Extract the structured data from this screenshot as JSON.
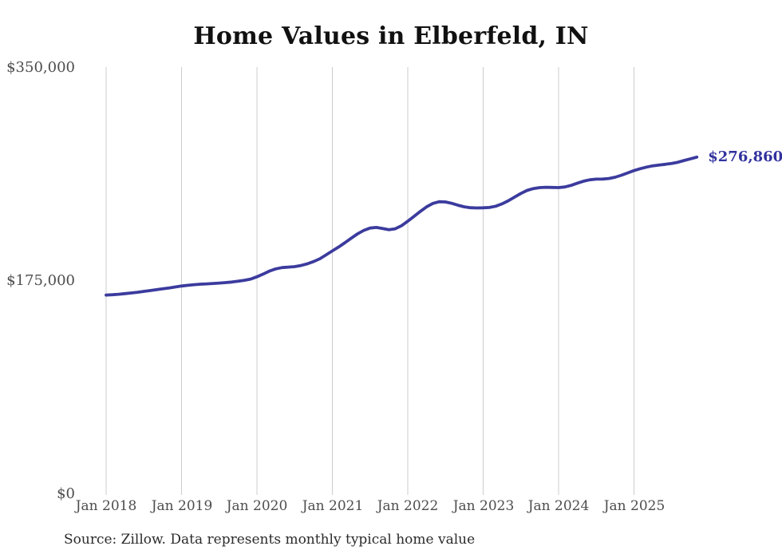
{
  "title": "Home Values in Elberfeld, IN",
  "end_label": "$276,860",
  "source_note": "Source: Zillow. Data represents monthly typical home value",
  "colors": {
    "line": "#3b3b9e",
    "end_label": "#32329e",
    "gridline": "#cccccc",
    "axis_text": "#4d4d4d",
    "title_text": "#111111",
    "source_text": "#2b2b2b",
    "background": "#ffffff"
  },
  "y_axis": {
    "tick_labels": [
      "$0",
      "$175,000",
      "$350,000"
    ],
    "tick_values": [
      0,
      175000,
      350000
    ],
    "min": 0,
    "max": 350000
  },
  "x_axis": {
    "tick_labels": [
      "Jan 2018",
      "Jan 2019",
      "Jan 2020",
      "Jan 2021",
      "Jan 2022",
      "Jan 2023",
      "Jan 2024",
      "Jan 2025"
    ]
  },
  "chart_data": {
    "type": "line",
    "title": "Home Values in Elberfeld, IN",
    "series_name": "Monthly typical home value",
    "unit": "USD",
    "grid": "vertical-only",
    "legend": "none",
    "ylim": [
      0,
      350000
    ],
    "y_tick_labels": [
      "$0",
      "$175,000",
      "$350,000"
    ],
    "x_tick_labels": [
      "Jan 2018",
      "Jan 2019",
      "Jan 2020",
      "Jan 2021",
      "Jan 2022",
      "Jan 2023",
      "Jan 2024",
      "Jan 2025"
    ],
    "last_value": 276860,
    "last_point_label": "$276,860",
    "x": [
      "2018-01",
      "2018-02",
      "2018-03",
      "2018-04",
      "2018-05",
      "2018-06",
      "2018-07",
      "2018-08",
      "2018-09",
      "2018-10",
      "2018-11",
      "2018-12",
      "2019-01",
      "2019-02",
      "2019-03",
      "2019-04",
      "2019-05",
      "2019-06",
      "2019-07",
      "2019-08",
      "2019-09",
      "2019-10",
      "2019-11",
      "2019-12",
      "2020-01",
      "2020-02",
      "2020-03",
      "2020-04",
      "2020-05",
      "2020-06",
      "2020-07",
      "2020-08",
      "2020-09",
      "2020-10",
      "2020-11",
      "2020-12",
      "2021-01",
      "2021-02",
      "2021-03",
      "2021-04",
      "2021-05",
      "2021-06",
      "2021-07",
      "2021-08",
      "2021-09",
      "2021-10",
      "2021-11",
      "2021-12",
      "2022-01",
      "2022-02",
      "2022-03",
      "2022-04",
      "2022-05",
      "2022-06",
      "2022-07",
      "2022-08",
      "2022-09",
      "2022-10",
      "2022-11",
      "2022-12",
      "2023-01",
      "2023-02",
      "2023-03",
      "2023-04",
      "2023-05",
      "2023-06",
      "2023-07",
      "2023-08",
      "2023-09",
      "2023-10",
      "2023-11",
      "2023-12",
      "2024-01",
      "2024-02",
      "2024-03",
      "2024-04",
      "2024-05",
      "2024-06",
      "2024-07",
      "2024-08",
      "2024-09",
      "2024-10",
      "2024-11",
      "2024-12",
      "2025-01",
      "2025-02",
      "2025-03",
      "2025-04",
      "2025-05",
      "2025-06",
      "2025-07",
      "2025-08",
      "2025-09",
      "2025-10",
      "2025-11"
    ],
    "values": [
      163800,
      164100,
      164500,
      165000,
      165500,
      166100,
      166800,
      167500,
      168200,
      168900,
      169600,
      170400,
      171200,
      171800,
      172300,
      172700,
      173000,
      173300,
      173600,
      174000,
      174500,
      175100,
      175900,
      176900,
      178800,
      181000,
      183500,
      185300,
      186300,
      186700,
      187100,
      188000,
      189400,
      191200,
      193500,
      196700,
      200000,
      203200,
      206700,
      210400,
      213900,
      216800,
      218700,
      219200,
      218300,
      217400,
      218100,
      220600,
      224300,
      228300,
      232400,
      236100,
      238900,
      240300,
      240100,
      239000,
      237400,
      236100,
      235400,
      235200,
      235300,
      235600,
      236600,
      238500,
      241100,
      244100,
      247100,
      249600,
      251100,
      251900,
      252100,
      252000,
      251900,
      252400,
      253700,
      255500,
      257200,
      258300,
      258800,
      258900,
      259300,
      260400,
      262000,
      263900,
      265800,
      267400,
      268700,
      269700,
      270400,
      271000,
      271700,
      272700,
      274100,
      275500,
      276860
    ]
  }
}
